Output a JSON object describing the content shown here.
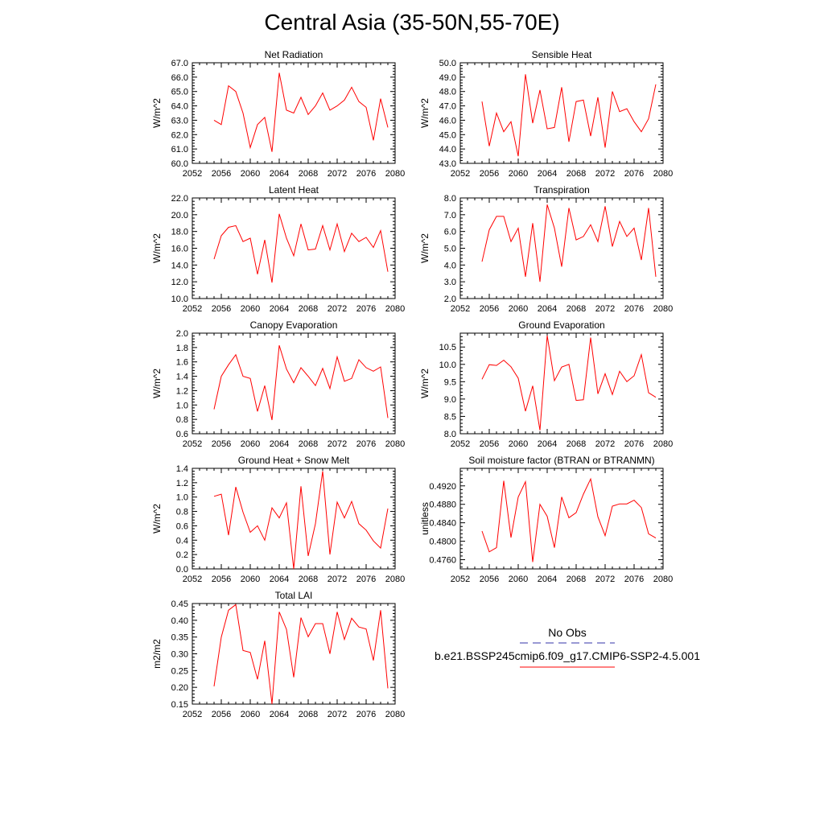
{
  "page_title": "Central Asia (35-50N,55-70E)",
  "colors": {
    "model_line": "#ff0000",
    "obs_line": "#3333aa",
    "axis": "#000000"
  },
  "legend": {
    "obs_label": "No Obs",
    "model_label": "b.e21.BSSP245cmip6.f09_g17.CMIP6-SSP2-4.5.001"
  },
  "chart_data": [
    {
      "type": "line",
      "title": "Net Radiation",
      "ylabel": "W/m^2",
      "xlim": [
        2052,
        2080
      ],
      "xticks": [
        "2052",
        "2056",
        "2060",
        "2064",
        "2068",
        "2072",
        "2076",
        "2080"
      ],
      "ylim": [
        60.0,
        67.0
      ],
      "yticks": [
        "60.0",
        "61.0",
        "62.0",
        "63.0",
        "64.0",
        "65.0",
        "66.0",
        "67.0"
      ],
      "x": [
        2055,
        2056,
        2057,
        2058,
        2059,
        2060,
        2061,
        2062,
        2063,
        2064,
        2065,
        2066,
        2067,
        2068,
        2069,
        2070,
        2071,
        2072,
        2073,
        2074,
        2075,
        2076,
        2077,
        2078,
        2079
      ],
      "series": [
        {
          "values": [
            63.0,
            62.7,
            65.4,
            65.0,
            63.5,
            61.1,
            62.7,
            63.2,
            60.8,
            66.3,
            63.7,
            63.5,
            64.6,
            63.4,
            64.0,
            64.9,
            63.7,
            64.0,
            64.4,
            65.3,
            64.3,
            63.9,
            61.6,
            64.5,
            62.5
          ]
        }
      ]
    },
    {
      "type": "line",
      "title": "Sensible Heat",
      "ylabel": "W/m^2",
      "xlim": [
        2052,
        2080
      ],
      "xticks": [
        "2052",
        "2056",
        "2060",
        "2064",
        "2068",
        "2072",
        "2076",
        "2080"
      ],
      "ylim": [
        43.0,
        50.0
      ],
      "yticks": [
        "43.0",
        "44.0",
        "45.0",
        "46.0",
        "47.0",
        "48.0",
        "49.0",
        "50.0"
      ],
      "x": [
        2055,
        2056,
        2057,
        2058,
        2059,
        2060,
        2061,
        2062,
        2063,
        2064,
        2065,
        2066,
        2067,
        2068,
        2069,
        2070,
        2071,
        2072,
        2073,
        2074,
        2075,
        2076,
        2077,
        2078,
        2079
      ],
      "series": [
        {
          "values": [
            47.3,
            44.2,
            46.5,
            45.2,
            45.9,
            43.5,
            49.2,
            45.8,
            48.1,
            45.4,
            45.5,
            48.3,
            44.5,
            47.3,
            47.4,
            44.9,
            47.6,
            44.1,
            48.0,
            46.6,
            46.8,
            45.9,
            45.2,
            46.1,
            48.5
          ]
        }
      ]
    },
    {
      "type": "line",
      "title": "Latent Heat",
      "ylabel": "W/m^2",
      "xlim": [
        2052,
        2080
      ],
      "xticks": [
        "2052",
        "2056",
        "2060",
        "2064",
        "2068",
        "2072",
        "2076",
        "2080"
      ],
      "ylim": [
        10.0,
        22.0
      ],
      "yticks": [
        "10.0",
        "12.0",
        "14.0",
        "16.0",
        "18.0",
        "20.0",
        "22.0"
      ],
      "x": [
        2055,
        2056,
        2057,
        2058,
        2059,
        2060,
        2061,
        2062,
        2063,
        2064,
        2065,
        2066,
        2067,
        2068,
        2069,
        2070,
        2071,
        2072,
        2073,
        2074,
        2075,
        2076,
        2077,
        2078,
        2079
      ],
      "series": [
        {
          "values": [
            14.7,
            17.5,
            18.5,
            18.7,
            16.8,
            17.2,
            12.9,
            17.0,
            11.9,
            20.1,
            17.2,
            15.1,
            18.9,
            15.8,
            15.9,
            18.7,
            15.8,
            18.9,
            15.6,
            17.8,
            16.8,
            17.3,
            16.1,
            18.1,
            13.2
          ]
        }
      ]
    },
    {
      "type": "line",
      "title": "Transpiration",
      "ylabel": "W/m^2",
      "xlim": [
        2052,
        2080
      ],
      "xticks": [
        "2052",
        "2056",
        "2060",
        "2064",
        "2068",
        "2072",
        "2076",
        "2080"
      ],
      "ylim": [
        2.0,
        8.0
      ],
      "yticks": [
        "2.0",
        "3.0",
        "4.0",
        "5.0",
        "6.0",
        "7.0",
        "8.0"
      ],
      "x": [
        2055,
        2056,
        2057,
        2058,
        2059,
        2060,
        2061,
        2062,
        2063,
        2064,
        2065,
        2066,
        2067,
        2068,
        2069,
        2070,
        2071,
        2072,
        2073,
        2074,
        2075,
        2076,
        2077,
        2078,
        2079
      ],
      "series": [
        {
          "values": [
            4.2,
            6.1,
            6.9,
            6.9,
            5.4,
            6.2,
            3.3,
            6.5,
            3.0,
            7.6,
            6.2,
            3.9,
            7.4,
            5.5,
            5.7,
            6.4,
            5.4,
            7.5,
            5.1,
            6.6,
            5.7,
            6.2,
            4.3,
            7.4,
            3.3
          ]
        }
      ]
    },
    {
      "type": "line",
      "title": "Canopy Evaporation",
      "ylabel": "W/m^2",
      "xlim": [
        2052,
        2080
      ],
      "xticks": [
        "2052",
        "2056",
        "2060",
        "2064",
        "2068",
        "2072",
        "2076",
        "2080"
      ],
      "ylim": [
        0.6,
        2.0
      ],
      "yticks": [
        "0.6",
        "0.8",
        "1.0",
        "1.2",
        "1.4",
        "1.6",
        "1.8",
        "2.0"
      ],
      "x": [
        2055,
        2056,
        2057,
        2058,
        2059,
        2060,
        2061,
        2062,
        2063,
        2064,
        2065,
        2066,
        2067,
        2068,
        2069,
        2070,
        2071,
        2072,
        2073,
        2074,
        2075,
        2076,
        2077,
        2078,
        2079
      ],
      "series": [
        {
          "values": [
            0.94,
            1.4,
            1.56,
            1.7,
            1.4,
            1.37,
            0.91,
            1.27,
            0.79,
            1.83,
            1.5,
            1.31,
            1.52,
            1.4,
            1.27,
            1.51,
            1.23,
            1.67,
            1.33,
            1.37,
            1.63,
            1.52,
            1.47,
            1.53,
            0.82
          ]
        }
      ]
    },
    {
      "type": "line",
      "title": "Ground Evaporation",
      "ylabel": "W/m^2",
      "xlim": [
        2052,
        2080
      ],
      "xticks": [
        "2052",
        "2056",
        "2060",
        "2064",
        "2068",
        "2072",
        "2076",
        "2080"
      ],
      "ylim": [
        8.0,
        10.9
      ],
      "yticks": [
        "8.0",
        "8.5",
        "9.0",
        "9.5",
        "10.0",
        "10.5"
      ],
      "x": [
        2055,
        2056,
        2057,
        2058,
        2059,
        2060,
        2061,
        2062,
        2063,
        2064,
        2065,
        2066,
        2067,
        2068,
        2069,
        2070,
        2071,
        2072,
        2073,
        2074,
        2075,
        2076,
        2077,
        2078,
        2079
      ],
      "series": [
        {
          "values": [
            9.57,
            9.99,
            9.97,
            10.12,
            9.93,
            9.6,
            8.65,
            9.38,
            8.1,
            10.83,
            9.53,
            9.92,
            10.0,
            8.96,
            8.98,
            10.77,
            9.15,
            9.73,
            9.13,
            9.8,
            9.5,
            9.67,
            10.28,
            9.18,
            9.05
          ]
        }
      ]
    },
    {
      "type": "line",
      "title": "Ground Heat + Snow Melt",
      "ylabel": "W/m^2",
      "xlim": [
        2052,
        2080
      ],
      "xticks": [
        "2052",
        "2056",
        "2060",
        "2064",
        "2068",
        "2072",
        "2076",
        "2080"
      ],
      "ylim": [
        0.0,
        1.4
      ],
      "yticks": [
        "0.0",
        "0.2",
        "0.4",
        "0.6",
        "0.8",
        "1.0",
        "1.2",
        "1.4"
      ],
      "x": [
        2055,
        2056,
        2057,
        2058,
        2059,
        2060,
        2061,
        2062,
        2063,
        2064,
        2065,
        2066,
        2067,
        2068,
        2069,
        2070,
        2071,
        2072,
        2073,
        2074,
        2075,
        2076,
        2077,
        2078,
        2079
      ],
      "series": [
        {
          "values": [
            1.01,
            1.04,
            0.47,
            1.14,
            0.79,
            0.51,
            0.6,
            0.4,
            0.85,
            0.71,
            0.92,
            0.0,
            1.15,
            0.18,
            0.63,
            1.36,
            0.2,
            0.93,
            0.71,
            0.94,
            0.63,
            0.54,
            0.39,
            0.29,
            0.84
          ]
        }
      ]
    },
    {
      "type": "line",
      "title": "Soil moisture factor (BTRAN or BTRANMN)",
      "ylabel": "unitless",
      "xlim": [
        2052,
        2080
      ],
      "xticks": [
        "2052",
        "2056",
        "2060",
        "2064",
        "2068",
        "2072",
        "2076",
        "2080"
      ],
      "ylim": [
        0.474,
        0.4958
      ],
      "yticks": [
        "0.4760",
        "0.4800",
        "0.4840",
        "0.4880",
        "0.4920"
      ],
      "x": [
        2055,
        2056,
        2057,
        2058,
        2059,
        2060,
        2061,
        2062,
        2063,
        2064,
        2065,
        2066,
        2067,
        2068,
        2069,
        2070,
        2071,
        2072,
        2073,
        2074,
        2075,
        2076,
        2077,
        2078,
        2079
      ],
      "series": [
        {
          "values": [
            0.4822,
            0.4777,
            0.4786,
            0.4931,
            0.4808,
            0.4896,
            0.4929,
            0.4755,
            0.488,
            0.4854,
            0.4786,
            0.4896,
            0.4851,
            0.4862,
            0.4902,
            0.4935,
            0.4853,
            0.4812,
            0.4876,
            0.4881,
            0.4881,
            0.4889,
            0.4873,
            0.4816,
            0.4807
          ]
        }
      ]
    },
    {
      "type": "line",
      "title": "Total LAI",
      "ylabel": "m2/m2",
      "xlim": [
        2052,
        2080
      ],
      "xticks": [
        "2052",
        "2056",
        "2060",
        "2064",
        "2068",
        "2072",
        "2076",
        "2080"
      ],
      "ylim": [
        0.15,
        0.45
      ],
      "yticks": [
        "0.15",
        "0.20",
        "0.25",
        "0.30",
        "0.35",
        "0.40",
        "0.45"
      ],
      "x": [
        2055,
        2056,
        2057,
        2058,
        2059,
        2060,
        2061,
        2062,
        2063,
        2064,
        2065,
        2066,
        2067,
        2068,
        2069,
        2070,
        2071,
        2072,
        2073,
        2074,
        2075,
        2076,
        2077,
        2078,
        2079
      ],
      "series": [
        {
          "values": [
            0.203,
            0.35,
            0.43,
            0.447,
            0.31,
            0.304,
            0.224,
            0.339,
            0.15,
            0.425,
            0.373,
            0.23,
            0.408,
            0.351,
            0.39,
            0.39,
            0.3,
            0.425,
            0.343,
            0.406,
            0.38,
            0.374,
            0.28,
            0.43,
            0.197
          ]
        }
      ]
    }
  ]
}
